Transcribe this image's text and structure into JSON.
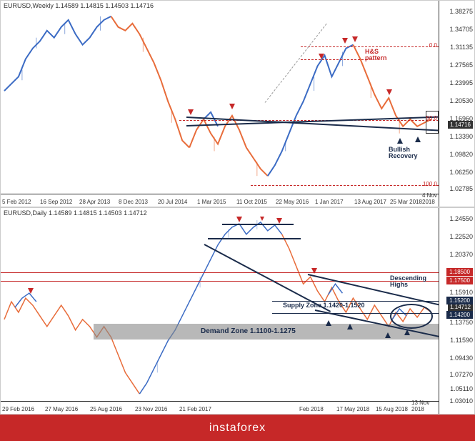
{
  "footer": {
    "brand": "instaforex"
  },
  "top_chart": {
    "title": "EURUSD,Weekly 1.14589 1.14815 1.14503 1.14716",
    "type": "candlestick",
    "background_color": "#ffffff",
    "up_color": "#3b6bc4",
    "down_color": "#e86c3a",
    "y_ticks": [
      "1.38275",
      "1.34705",
      "1.31135",
      "1.27565",
      "1.23995",
      "1.20530",
      "1.16960",
      "1.13390",
      "1.09820",
      "1.06250",
      "1.02785"
    ],
    "ylim": [
      1.02785,
      1.38275
    ],
    "x_ticks": [
      "5 Feb 2012",
      "16 Sep 2012",
      "28 Apr 2013",
      "8 Dec 2013",
      "20 Jul 2014",
      "1 Mar 2015",
      "11 Oct 2015",
      "22 May 2016",
      "1 Jan 2017",
      "13 Aug 2017",
      "25 Mar 2018",
      "4 Nov 2018"
    ],
    "current_price": "1.14716",
    "annotations": {
      "hs_pattern": {
        "text": "H&S\npattern",
        "color": "#c62828"
      },
      "bullish_recovery": {
        "text": "Bullish\nRecovery",
        "color": "#1a2b4a"
      }
    },
    "fib_levels": {
      "zero": {
        "label": "0.0",
        "value": 1.2556
      },
      "fifty": {
        "label": "50.0",
        "value": 1.1417
      },
      "hundred": {
        "label": "100.0",
        "value": 1.0278
      }
    },
    "trendline_color": "#1a2b4a",
    "dashed_color": "#c62828",
    "arrow_color": "#c62828"
  },
  "bottom_chart": {
    "title": "EURUSD,Daily 1.14589 1.14815 1.14503 1.14712",
    "type": "candlestick",
    "background_color": "#ffffff",
    "up_color": "#3b6bc4",
    "down_color": "#e86c3a",
    "y_ticks": [
      "1.24550",
      "1.22520",
      "1.20370",
      "1.18240",
      "1.15910",
      "1.13750",
      "1.11590",
      "1.09430",
      "1.07270",
      "1.05110",
      "1.03010"
    ],
    "ylim": [
      1.0301,
      1.2455
    ],
    "x_ticks": [
      "29 Feb 2016",
      "27 May 2016",
      "25 Aug 2016",
      "23 Nov 2016",
      "21 Feb 2017",
      "Feb 2018",
      "17 May 2018",
      "15 Aug 2018",
      "13 Nov 2018"
    ],
    "current_price": "1.14712",
    "levels": {
      "r1": {
        "value": "1.18500",
        "color": "#c62828"
      },
      "r2": {
        "value": "1.17500",
        "color": "#c62828"
      },
      "s1": {
        "value": "1.15200",
        "color": "#1a2b4a"
      },
      "s2": {
        "value": "1.14200",
        "color": "#1a2b4a"
      },
      "cur": {
        "value": "1.14712",
        "color": "#333333"
      }
    },
    "annotations": {
      "descending_highs": {
        "text": "Descending\nHighs",
        "color": "#1a2b4a"
      },
      "supply_zone": {
        "text": "Supply Zone 1.1420-1.1520",
        "color": "#1a2b4a"
      },
      "demand_zone": {
        "text": "Demand Zone 1.1100-1.1275",
        "color": "#1a2b4a"
      }
    },
    "demand_zone_color": "#888888",
    "trendline_color": "#1a2b4a",
    "ellipse_color": "#1a2b4a",
    "arrow_color": "#c62828"
  }
}
